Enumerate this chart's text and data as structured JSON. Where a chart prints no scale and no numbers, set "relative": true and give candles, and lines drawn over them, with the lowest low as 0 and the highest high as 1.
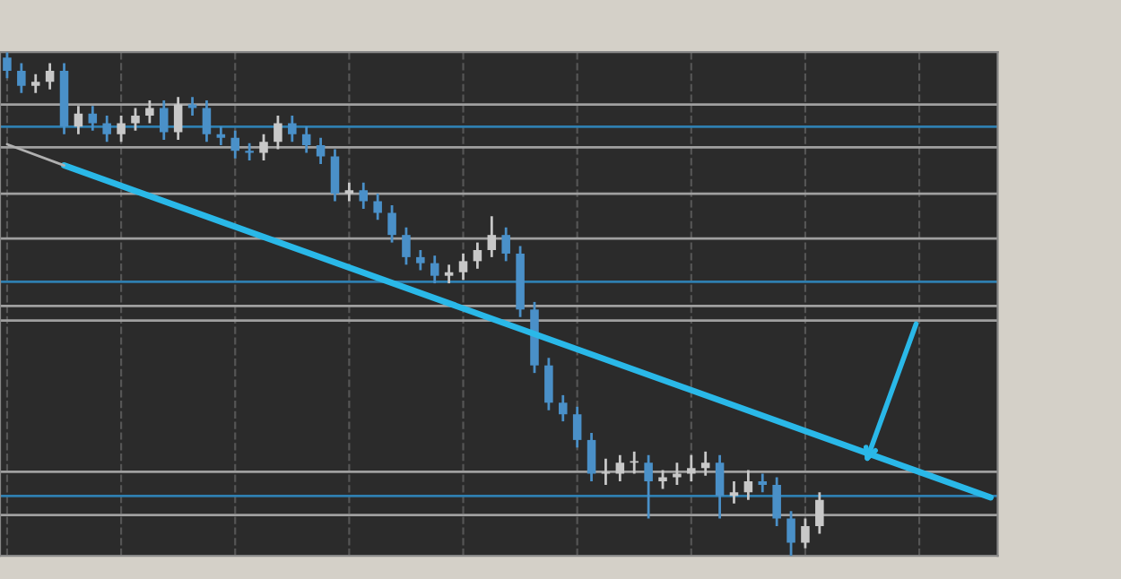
{
  "chart_data": {
    "type": "candlestick",
    "relative": true,
    "grid": "x",
    "categories": [
      null,
      null,
      null,
      null,
      null,
      null,
      null,
      null,
      null,
      null,
      null,
      null,
      null,
      null,
      null,
      null,
      null,
      null,
      null,
      null,
      null,
      null,
      null,
      null,
      null,
      null,
      null,
      null,
      null,
      null,
      null,
      null,
      null,
      null,
      null,
      null,
      null,
      null,
      null,
      null,
      null,
      null,
      null,
      null,
      null,
      null,
      null,
      null,
      null,
      null,
      null,
      null,
      null,
      null,
      null,
      null,
      null,
      null,
      null,
      null,
      null,
      null,
      null,
      null,
      null,
      null,
      null,
      null,
      null,
      null
    ],
    "series": [
      {
        "ohlc": [
          [
            0.989,
            1,
            0.948,
            0.963
          ],
          [
            0.963,
            0.978,
            0.919,
            0.933
          ],
          [
            0.933,
            0.956,
            0.919,
            0.941
          ],
          [
            0.941,
            0.978,
            0.926,
            0.963
          ],
          [
            0.963,
            0.978,
            0.837,
            0.852
          ],
          [
            0.852,
            0.893,
            0.837,
            0.878
          ],
          [
            0.878,
            0.893,
            0.844,
            0.859
          ],
          [
            0.859,
            0.874,
            0.822,
            0.837
          ],
          [
            0.837,
            0.874,
            0.822,
            0.859
          ],
          [
            0.859,
            0.889,
            0.844,
            0.874
          ],
          [
            0.874,
            0.904,
            0.859,
            0.889
          ],
          [
            0.889,
            0.904,
            0.826,
            0.841
          ],
          [
            0.841,
            0.911,
            0.826,
            0.896
          ],
          [
            0.896,
            0.911,
            0.874,
            0.889
          ],
          [
            0.889,
            0.904,
            0.822,
            0.837
          ],
          [
            0.837,
            0.852,
            0.815,
            0.83
          ],
          [
            0.83,
            0.844,
            0.789,
            0.804
          ],
          [
            0.804,
            0.819,
            0.785,
            0.8
          ],
          [
            0.8,
            0.837,
            0.785,
            0.822
          ],
          [
            0.822,
            0.874,
            0.807,
            0.859
          ],
          [
            0.859,
            0.874,
            0.822,
            0.837
          ],
          [
            0.837,
            0.852,
            0.8,
            0.815
          ],
          [
            0.815,
            0.83,
            0.778,
            0.793
          ],
          [
            0.793,
            0.807,
            0.704,
            0.719
          ],
          [
            0.719,
            0.741,
            0.704,
            0.726
          ],
          [
            0.726,
            0.741,
            0.689,
            0.704
          ],
          [
            0.704,
            0.719,
            0.667,
            0.681
          ],
          [
            0.681,
            0.696,
            0.622,
            0.637
          ],
          [
            0.637,
            0.652,
            0.578,
            0.593
          ],
          [
            0.593,
            0.607,
            0.567,
            0.581
          ],
          [
            0.581,
            0.596,
            0.541,
            0.556
          ],
          [
            0.556,
            0.578,
            0.541,
            0.563
          ],
          [
            0.563,
            0.6,
            0.548,
            0.585
          ],
          [
            0.585,
            0.622,
            0.57,
            0.607
          ],
          [
            0.607,
            0.674,
            0.593,
            0.637
          ],
          [
            0.637,
            0.652,
            0.585,
            0.6
          ],
          [
            0.6,
            0.615,
            0.474,
            0.489
          ],
          [
            0.489,
            0.504,
            0.363,
            0.378
          ],
          [
            0.378,
            0.393,
            0.289,
            0.304
          ],
          [
            0.304,
            0.319,
            0.267,
            0.281
          ],
          [
            0.281,
            0.296,
            0.215,
            0.23
          ],
          [
            0.23,
            0.244,
            0.148,
            0.163
          ],
          [
            0.163,
            0.193,
            0.141,
            0.163
          ],
          [
            0.163,
            0.2,
            0.148,
            0.185
          ],
          [
            0.185,
            0.207,
            0.163,
            0.185
          ],
          [
            0.185,
            0.2,
            0.074,
            0.148
          ],
          [
            0.148,
            0.17,
            0.133,
            0.156
          ],
          [
            0.156,
            0.185,
            0.141,
            0.163
          ],
          [
            0.163,
            0.2,
            0.148,
            0.174
          ],
          [
            0.174,
            0.207,
            0.159,
            0.185
          ],
          [
            0.185,
            0.2,
            0.074,
            0.119
          ],
          [
            0.119,
            0.148,
            0.104,
            0.126
          ],
          [
            0.126,
            0.17,
            0.111,
            0.148
          ],
          [
            0.148,
            0.163,
            0.126,
            0.141
          ],
          [
            0.141,
            0.156,
            0.059,
            0.074
          ],
          [
            0.074,
            0.089,
            0,
            0.026
          ],
          [
            0.026,
            0.074,
            0.015,
            0.059
          ],
          [
            0.059,
            0.126,
            0.044,
            0.111
          ],
          null,
          null,
          null,
          null,
          null,
          null,
          null,
          null,
          null,
          null,
          null,
          null
        ],
        "colors": [
          "#4a90c8",
          "#4a90c8",
          "#c8c8c8",
          "#c8c8c8",
          "#4a90c8",
          "#c8c8c8",
          "#4a90c8",
          "#4a90c8",
          "#c8c8c8",
          "#c8c8c8",
          "#c8c8c8",
          "#4a90c8",
          "#c8c8c8",
          "#4a90c8",
          "#4a90c8",
          "#4a90c8",
          "#4a90c8",
          "#4a90c8",
          "#c8c8c8",
          "#c8c8c8",
          "#4a90c8",
          "#4a90c8",
          "#4a90c8",
          "#4a90c8",
          "#c8c8c8",
          "#4a90c8",
          "#4a90c8",
          "#4a90c8",
          "#4a90c8",
          "#4a90c8",
          "#4a90c8",
          "#c8c8c8",
          "#c8c8c8",
          "#c8c8c8",
          "#c8c8c8",
          "#4a90c8",
          "#4a90c8",
          "#4a90c8",
          "#4a90c8",
          "#4a90c8",
          "#4a90c8",
          "#4a90c8",
          "#c8c8c8",
          "#c8c8c8",
          "#c8c8c8",
          "#4a90c8",
          "#c8c8c8",
          "#c8c8c8",
          "#c8c8c8",
          "#c8c8c8",
          "#4a90c8",
          "#c8c8c8",
          "#c8c8c8",
          "#4a90c8",
          "#4a90c8",
          "#4a90c8",
          "#c8c8c8",
          "#c8c8c8",
          null,
          null,
          null,
          null,
          null,
          null,
          null,
          null,
          null,
          null,
          null,
          null
        ]
      },
      {
        "type": "line",
        "color": "#2ab8e8",
        "values": [
          null,
          null,
          null,
          null,
          0.775,
          null,
          null,
          null,
          null,
          null,
          null,
          null,
          null,
          null,
          null,
          null,
          null,
          null,
          null,
          null,
          null,
          null,
          null,
          null,
          null,
          null,
          null,
          null,
          null,
          null,
          null,
          null,
          null,
          null,
          null,
          null,
          null,
          null,
          null,
          null,
          null,
          null,
          null,
          null,
          null,
          null,
          null,
          null,
          null,
          null,
          null,
          null,
          null,
          null,
          null,
          null,
          null,
          null,
          null,
          null,
          null,
          null,
          null,
          null,
          null,
          null,
          null,
          null,
          null,
          0.116
        ]
      },
      {
        "type": "line",
        "color": "#b0b0b0",
        "values": [
          0.817,
          null,
          null,
          null,
          0.775,
          null,
          null,
          null,
          null,
          null,
          null,
          null,
          null,
          null,
          null,
          null,
          null,
          null,
          null,
          null,
          null,
          null,
          null,
          null,
          null,
          null,
          null,
          null,
          null,
          null,
          null,
          null,
          null,
          null,
          null,
          null,
          null,
          null,
          null,
          null,
          null,
          null,
          null,
          null,
          null,
          null,
          null,
          null,
          null,
          null,
          null,
          null,
          null,
          null,
          null,
          null,
          null,
          null,
          null,
          null,
          null,
          null,
          null,
          null,
          null,
          null,
          null,
          null,
          null,
          null
        ]
      }
    ],
    "ref_lines": [
      {
        "axis": "y",
        "value": 0.896,
        "color": "#a0a0a0"
      },
      {
        "axis": "y",
        "value": 0.852,
        "color": "#2f7fb0"
      },
      {
        "axis": "y",
        "value": 0.811,
        "color": "#a0a0a0"
      },
      {
        "axis": "y",
        "value": 0.719,
        "color": "#a0a0a0"
      },
      {
        "axis": "y",
        "value": 0.63,
        "color": "#a0a0a0"
      },
      {
        "axis": "y",
        "value": 0.544,
        "color": "#2f7fb0"
      },
      {
        "axis": "y",
        "value": 0.496,
        "color": "#a0a0a0"
      },
      {
        "axis": "y",
        "value": 0.467,
        "color": "#a0a0a0"
      },
      {
        "axis": "y",
        "value": 0.167,
        "color": "#a0a0a0"
      },
      {
        "axis": "y",
        "value": 0.119,
        "color": "#2f7fb0"
      },
      {
        "axis": "y",
        "value": 0.081,
        "color": "#a0a0a0"
      }
    ]
  }
}
